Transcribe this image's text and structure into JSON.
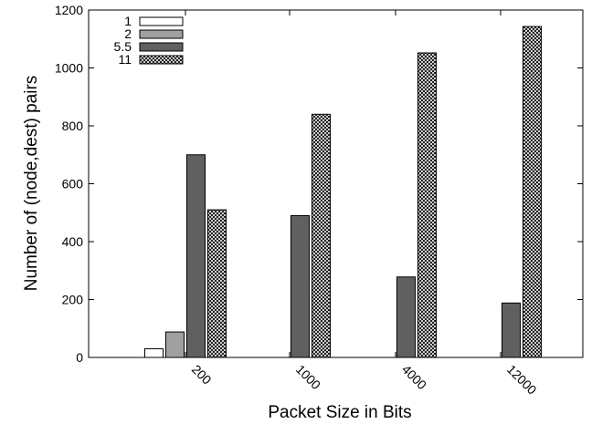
{
  "chart_data": {
    "type": "bar",
    "xlabel": "Packet Size in Bits",
    "ylabel": "Number of (node,dest) pairs",
    "categories": [
      "200",
      "1000",
      "4000",
      "12000"
    ],
    "ylim": [
      0,
      1200
    ],
    "yticks": [
      0,
      200,
      400,
      600,
      800,
      1000,
      1200
    ],
    "legend_position": "top-left",
    "grid": false,
    "series": [
      {
        "name": "1",
        "values": [
          30,
          0,
          0,
          0
        ],
        "color": "#ffffff",
        "pattern": "solid"
      },
      {
        "name": "2",
        "values": [
          88,
          0,
          0,
          0
        ],
        "color": "#a0a0a0",
        "pattern": "solid"
      },
      {
        "name": "5.5",
        "values": [
          700,
          490,
          278,
          188
        ],
        "color": "#606060",
        "pattern": "solid"
      },
      {
        "name": "11",
        "values": [
          510,
          840,
          1052,
          1143
        ],
        "color": "#ffffff",
        "pattern": "crosshatch"
      }
    ]
  }
}
